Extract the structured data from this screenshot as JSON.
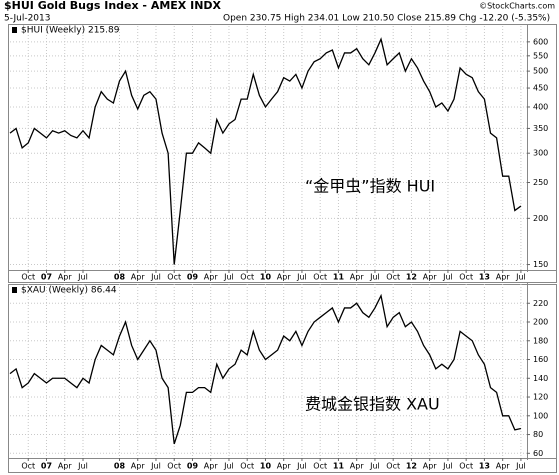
{
  "header": {
    "title": "$HUI Gold Bugs Index - AMEX INDX",
    "date": "5-Jul-2013",
    "quote": "Open 230.75 High 234.01 Low 210.50 Close 215.89 Chg -12.20 (-5.35%)",
    "credit": "©StockCharts.com"
  },
  "chart_data": [
    {
      "type": "line",
      "annotation": "“金甲虫”指数 HUI",
      "log_scale": true,
      "grid": true,
      "series": [
        {
          "name": "$HUI (Weekly) 215.89",
          "color": "#000000",
          "x": [
            6,
            7,
            8,
            9,
            10,
            11,
            12,
            13,
            14,
            15,
            16,
            17,
            18,
            19,
            20,
            21,
            22,
            23,
            24,
            25,
            26,
            27,
            28,
            29,
            30,
            31,
            32,
            33,
            34,
            35,
            36,
            37,
            38,
            39,
            40,
            41,
            42,
            43,
            44,
            45,
            46,
            47,
            48,
            49,
            50,
            51,
            52,
            53,
            54,
            55,
            56,
            57,
            58,
            59,
            60,
            61,
            62,
            63,
            64,
            65,
            66,
            67,
            68,
            69,
            70,
            71,
            72,
            73,
            74,
            75,
            76,
            77,
            78,
            79,
            80,
            81,
            82,
            83,
            84,
            85,
            86,
            87,
            88,
            89,
            90
          ],
          "values": [
            340,
            350,
            310,
            320,
            350,
            340,
            330,
            345,
            340,
            345,
            335,
            330,
            345,
            330,
            400,
            440,
            420,
            410,
            470,
            500,
            430,
            395,
            430,
            440,
            420,
            340,
            300,
            150,
            210,
            300,
            300,
            320,
            310,
            300,
            370,
            340,
            360,
            370,
            420,
            420,
            490,
            430,
            400,
            420,
            440,
            480,
            470,
            490,
            450,
            500,
            530,
            540,
            560,
            570,
            510,
            560,
            560,
            575,
            540,
            520,
            560,
            610,
            520,
            540,
            560,
            500,
            540,
            510,
            470,
            440,
            400,
            410,
            390,
            420,
            510,
            490,
            480,
            440,
            420,
            340,
            330,
            260,
            260,
            210,
            215.89
          ]
        }
      ],
      "xlim": [
        6,
        91
      ],
      "ylim": [
        145,
        630
      ],
      "yticks": [
        150,
        200,
        250,
        300,
        350,
        400,
        450,
        500,
        550,
        600
      ],
      "xticks": [
        {
          "value": 9,
          "label": "Oct"
        },
        {
          "value": 12,
          "label": "07"
        },
        {
          "value": 15,
          "label": "Apr"
        },
        {
          "value": 18,
          "label": "Jul"
        },
        {
          "value": 24,
          "label": "08"
        },
        {
          "value": 27,
          "label": "Apr"
        },
        {
          "value": 30,
          "label": "Jul"
        },
        {
          "value": 33,
          "label": "Oct"
        },
        {
          "value": 36,
          "label": "09"
        },
        {
          "value": 39,
          "label": "Apr"
        },
        {
          "value": 42,
          "label": "Jul"
        },
        {
          "value": 45,
          "label": "Oct"
        },
        {
          "value": 48,
          "label": "10"
        },
        {
          "value": 51,
          "label": "Apr"
        },
        {
          "value": 54,
          "label": "Jul"
        },
        {
          "value": 57,
          "label": "Oct"
        },
        {
          "value": 60,
          "label": "11"
        },
        {
          "value": 63,
          "label": "Apr"
        },
        {
          "value": 66,
          "label": "Jul"
        },
        {
          "value": 69,
          "label": "Oct"
        },
        {
          "value": 72,
          "label": "12"
        },
        {
          "value": 75,
          "label": "Apr"
        },
        {
          "value": 78,
          "label": "Jul"
        },
        {
          "value": 81,
          "label": "Oct"
        },
        {
          "value": 84,
          "label": "13"
        },
        {
          "value": 87,
          "label": "Apr"
        },
        {
          "value": 90,
          "label": "Jul"
        }
      ]
    },
    {
      "type": "line",
      "annotation": "费城金银指数 XAU",
      "log_scale": false,
      "grid": true,
      "series": [
        {
          "name": "$XAU (Weekly) 86.44",
          "color": "#000000",
          "x": [
            6,
            7,
            8,
            9,
            10,
            11,
            12,
            13,
            14,
            15,
            16,
            17,
            18,
            19,
            20,
            21,
            22,
            23,
            24,
            25,
            26,
            27,
            28,
            29,
            30,
            31,
            32,
            33,
            34,
            35,
            36,
            37,
            38,
            39,
            40,
            41,
            42,
            43,
            44,
            45,
            46,
            47,
            48,
            49,
            50,
            51,
            52,
            53,
            54,
            55,
            56,
            57,
            58,
            59,
            60,
            61,
            62,
            63,
            64,
            65,
            66,
            67,
            68,
            69,
            70,
            71,
            72,
            73,
            74,
            75,
            76,
            77,
            78,
            79,
            80,
            81,
            82,
            83,
            84,
            85,
            86,
            87,
            88,
            89,
            90
          ],
          "values": [
            145,
            150,
            130,
            135,
            145,
            140,
            135,
            140,
            140,
            140,
            135,
            130,
            140,
            135,
            160,
            175,
            170,
            165,
            185,
            200,
            175,
            160,
            170,
            180,
            170,
            140,
            130,
            70,
            90,
            125,
            125,
            130,
            130,
            125,
            155,
            140,
            150,
            155,
            170,
            165,
            190,
            170,
            160,
            165,
            170,
            185,
            180,
            190,
            175,
            190,
            200,
            205,
            210,
            215,
            200,
            215,
            215,
            220,
            210,
            205,
            215,
            228,
            195,
            205,
            210,
            195,
            200,
            190,
            175,
            165,
            150,
            155,
            150,
            160,
            190,
            185,
            180,
            165,
            155,
            130,
            125,
            100,
            100,
            85,
            86.44
          ]
        }
      ],
      "xlim": [
        6,
        91
      ],
      "ylim": [
        55,
        232
      ],
      "yticks": [
        60,
        80,
        100,
        120,
        140,
        160,
        180,
        200,
        220
      ],
      "xticks": [
        {
          "value": 9,
          "label": "Oct"
        },
        {
          "value": 12,
          "label": "07"
        },
        {
          "value": 15,
          "label": "Apr"
        },
        {
          "value": 18,
          "label": "Jul"
        },
        {
          "value": 24,
          "label": "08"
        },
        {
          "value": 27,
          "label": "Apr"
        },
        {
          "value": 30,
          "label": "Jul"
        },
        {
          "value": 33,
          "label": "Oct"
        },
        {
          "value": 36,
          "label": "09"
        },
        {
          "value": 39,
          "label": "Apr"
        },
        {
          "value": 42,
          "label": "Jul"
        },
        {
          "value": 45,
          "label": "Oct"
        },
        {
          "value": 48,
          "label": "10"
        },
        {
          "value": 51,
          "label": "Apr"
        },
        {
          "value": 54,
          "label": "Jul"
        },
        {
          "value": 57,
          "label": "Oct"
        },
        {
          "value": 60,
          "label": "11"
        },
        {
          "value": 63,
          "label": "Apr"
        },
        {
          "value": 66,
          "label": "Jul"
        },
        {
          "value": 69,
          "label": "Oct"
        },
        {
          "value": 72,
          "label": "12"
        },
        {
          "value": 75,
          "label": "Apr"
        },
        {
          "value": 78,
          "label": "Jul"
        },
        {
          "value": 81,
          "label": "Oct"
        },
        {
          "value": 84,
          "label": "13"
        },
        {
          "value": 87,
          "label": "Apr"
        },
        {
          "value": 90,
          "label": "Jul"
        }
      ]
    }
  ]
}
